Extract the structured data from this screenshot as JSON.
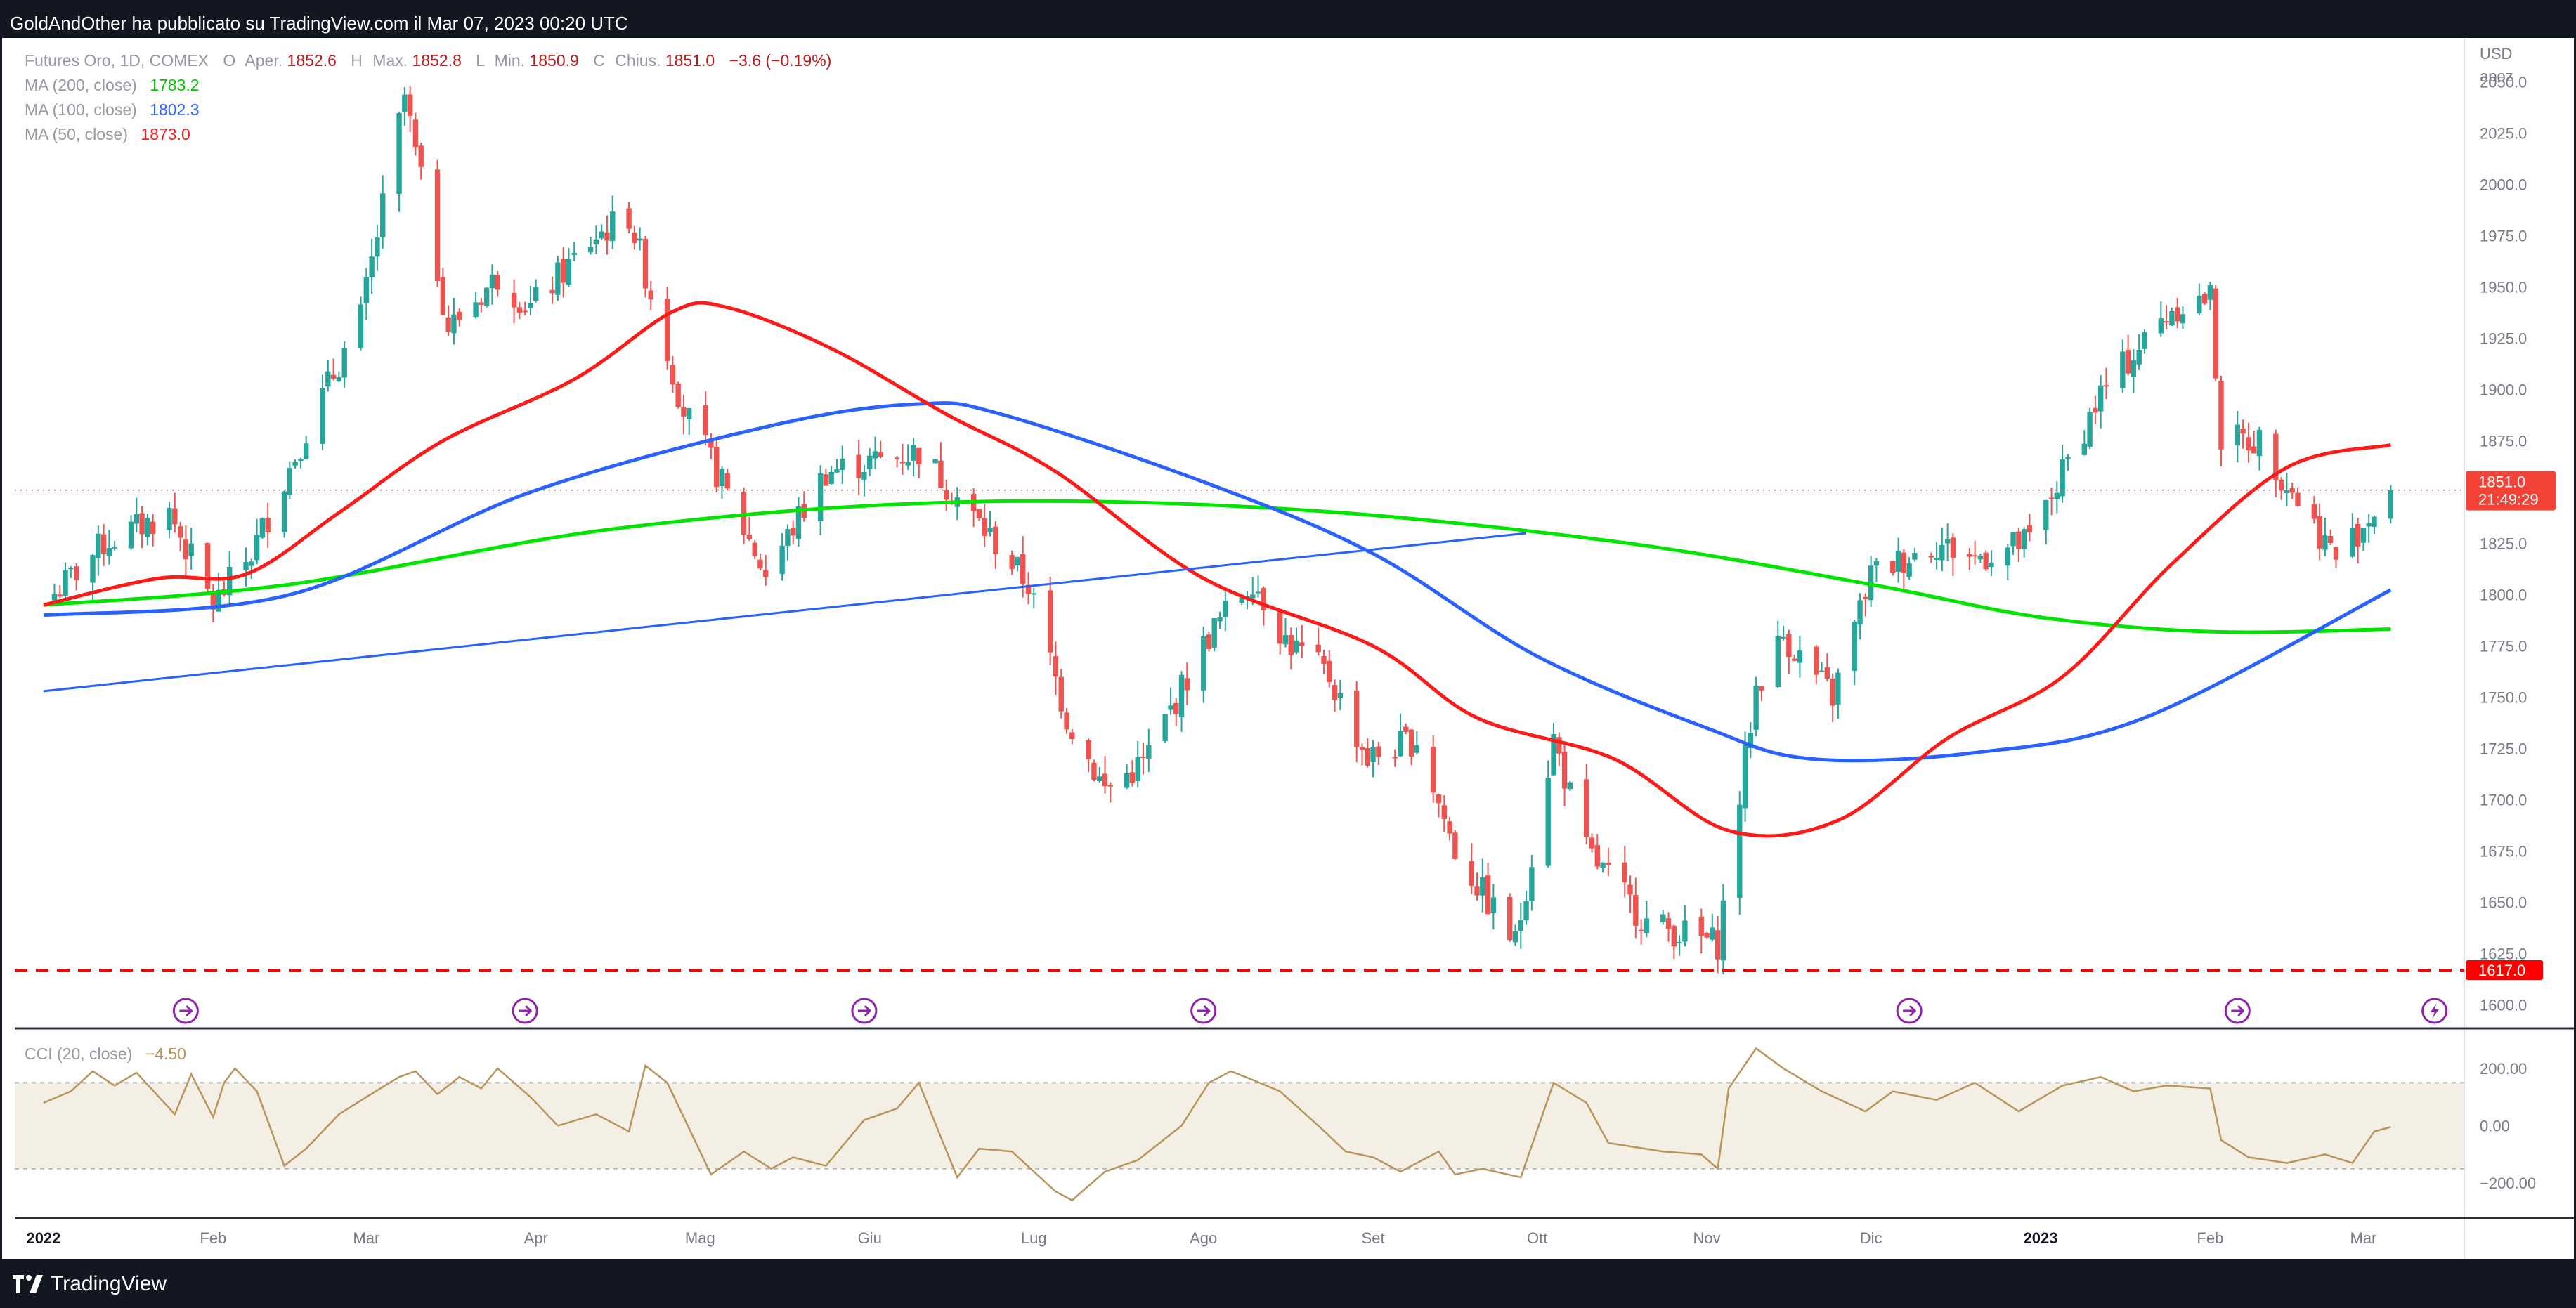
{
  "header": {
    "publisher_text": "GoldAndOther ha pubblicato su TradingView.com il Mar 07, 2023 00:20 UTC"
  },
  "footer": {
    "logo_text": "TradingView"
  },
  "legend": {
    "symbol": "Futures Oro, 1D, COMEX",
    "open_label": "O",
    "open_word": "Aper.",
    "open": "1852.6",
    "high_label": "H",
    "high_word": "Max.",
    "high": "1852.8",
    "low_label": "L",
    "low_word": "Min.",
    "low": "1850.9",
    "close_label": "C",
    "close_word": "Chius.",
    "close": "1851.0",
    "change": "−3.6 (−0.19%)",
    "ma200_label": "MA (200, close)",
    "ma200_value": "1783.2",
    "ma100_label": "MA (100, close)",
    "ma100_value": "1802.3",
    "ma50_label": "MA (50, close)",
    "ma50_value": "1873.0"
  },
  "price_axis": {
    "currency": "USD",
    "scale_mode": "apoz",
    "current_price_tag": "1851.0",
    "countdown_tag": "21:49:29",
    "level_tag": "1617.0"
  },
  "cci_legend": {
    "label": "CCI (20, close)",
    "value": "−4.50"
  },
  "colors": {
    "up": "#26a69a",
    "down": "#ef5350",
    "ma200": "#00e500",
    "ma100": "#2962ff",
    "ma50": "#ff1a1a",
    "trendline": "#2962ff",
    "level": "#ff0000",
    "cci": "#b8955a",
    "cci_band": "#f3efe4",
    "event_icon": "#8e24aa"
  },
  "chart_data": [
    {
      "type": "candlestick",
      "title": "Futures Oro, 1D, COMEX",
      "x_tick_labels": [
        "2022",
        "Feb",
        "Mar",
        "Apr",
        "Mag",
        "Giu",
        "Lug",
        "Ago",
        "Set",
        "Ott",
        "Nov",
        "Dic",
        "2023",
        "Feb",
        "Mar"
      ],
      "y_ticks": [
        1600,
        1625,
        1650,
        1675,
        1700,
        1725,
        1750,
        1775,
        1800,
        1825,
        1850,
        1875,
        1900,
        1925,
        1950,
        1975,
        2000,
        2025,
        2050
      ],
      "y_tick_labels": [
        "1600.0",
        "1625.0",
        "1650.0",
        "1675.0",
        "1700.0",
        "1725.0",
        "1750.0",
        "1775.0",
        "1800.0",
        "1825.0",
        "1850.0",
        "1875.0",
        "1900.0",
        "1925.0",
        "1950.0",
        "1975.0",
        "2000.0",
        "2025.0",
        "2050.0"
      ],
      "ylim": [
        1592,
        2068
      ],
      "close_anchors": [
        [
          "2022-01-01",
          1795
        ],
        [
          "2022-01-12",
          1825
        ],
        [
          "2022-01-24",
          1840
        ],
        [
          "2022-02-01",
          1795
        ],
        [
          "2022-02-08",
          1820
        ],
        [
          "2022-02-18",
          1880
        ],
        [
          "2022-02-28",
          1935
        ],
        [
          "2022-03-08",
          2043
        ],
        [
          "2022-03-16",
          1930
        ],
        [
          "2022-03-25",
          1955
        ],
        [
          "2022-03-31",
          1940
        ],
        [
          "2022-04-12",
          1975
        ],
        [
          "2022-04-18",
          1985
        ],
        [
          "2022-04-28",
          1890
        ],
        [
          "2022-05-03",
          1865
        ],
        [
          "2022-05-13",
          1810
        ],
        [
          "2022-05-24",
          1860
        ],
        [
          "2022-06-10",
          1870
        ],
        [
          "2022-06-24",
          1825
        ],
        [
          "2022-06-30",
          1805
        ],
        [
          "2022-07-07",
          1740
        ],
        [
          "2022-07-14",
          1705
        ],
        [
          "2022-07-21",
          1718
        ],
        [
          "2022-08-02",
          1780
        ],
        [
          "2022-08-10",
          1808
        ],
        [
          "2022-08-16",
          1778
        ],
        [
          "2022-08-24",
          1760
        ],
        [
          "2022-08-31",
          1720
        ],
        [
          "2022-09-09",
          1730
        ],
        [
          "2022-09-16",
          1675
        ],
        [
          "2022-09-27",
          1630
        ],
        [
          "2022-10-04",
          1730
        ],
        [
          "2022-10-10",
          1675
        ],
        [
          "2022-10-21",
          1640
        ],
        [
          "2022-11-03",
          1630
        ],
        [
          "2022-11-10",
          1755
        ],
        [
          "2022-11-15",
          1780
        ],
        [
          "2022-11-24",
          1750
        ],
        [
          "2022-12-01",
          1810
        ],
        [
          "2022-12-13",
          1825
        ],
        [
          "2022-12-20",
          1818
        ],
        [
          "2022-12-30",
          1826
        ],
        [
          "2023-01-12",
          1898
        ],
        [
          "2023-01-25",
          1940
        ],
        [
          "2023-02-01",
          1945
        ],
        [
          "2023-02-03",
          1876
        ],
        [
          "2023-02-10",
          1875
        ],
        [
          "2023-02-24",
          1818
        ],
        [
          "2023-03-06",
          1851
        ]
      ],
      "series": [
        {
          "name": "MA (200, close)",
          "points": [
            [
              "2022-01-01",
              1795
            ],
            [
              "2022-02-15",
              1805
            ],
            [
              "2022-04-15",
              1832
            ],
            [
              "2022-06-15",
              1845
            ],
            [
              "2022-08-15",
              1842
            ],
            [
              "2022-10-15",
              1826
            ],
            [
              "2022-12-01",
              1805
            ],
            [
              "2023-01-01",
              1789
            ],
            [
              "2023-02-01",
              1782
            ],
            [
              "2023-03-06",
              1783.2
            ]
          ]
        },
        {
          "name": "MA (100, close)",
          "points": [
            [
              "2022-01-01",
              1790
            ],
            [
              "2022-02-15",
              1800
            ],
            [
              "2022-03-31",
              1850
            ],
            [
              "2022-05-15",
              1883
            ],
            [
              "2022-06-10",
              1893
            ],
            [
              "2022-06-25",
              1888
            ],
            [
              "2022-08-01",
              1855
            ],
            [
              "2022-09-01",
              1820
            ],
            [
              "2022-10-01",
              1770
            ],
            [
              "2022-11-01",
              1735
            ],
            [
              "2022-11-20",
              1720
            ],
            [
              "2022-12-20",
              1723
            ],
            [
              "2023-01-20",
              1740
            ],
            [
              "2023-03-06",
              1802.3
            ]
          ]
        },
        {
          "name": "MA (50, close)",
          "points": [
            [
              "2022-01-01",
              1795
            ],
            [
              "2022-01-22",
              1808
            ],
            [
              "2022-02-07",
              1810
            ],
            [
              "2022-02-24",
              1840
            ],
            [
              "2022-03-15",
              1875
            ],
            [
              "2022-04-08",
              1905
            ],
            [
              "2022-04-26",
              1938
            ],
            [
              "2022-05-06",
              1940
            ],
            [
              "2022-05-25",
              1920
            ],
            [
              "2022-06-15",
              1888
            ],
            [
              "2022-07-05",
              1860
            ],
            [
              "2022-08-01",
              1808
            ],
            [
              "2022-09-01",
              1775
            ],
            [
              "2022-09-20",
              1740
            ],
            [
              "2022-10-15",
              1720
            ],
            [
              "2022-11-05",
              1685
            ],
            [
              "2022-11-25",
              1690
            ],
            [
              "2022-12-15",
              1730
            ],
            [
              "2023-01-05",
              1760
            ],
            [
              "2023-01-25",
              1815
            ],
            [
              "2023-02-15",
              1862
            ],
            [
              "2023-03-06",
              1873.0
            ]
          ]
        }
      ],
      "trendline": {
        "from": [
          "2022-01-01",
          1753
        ],
        "to": [
          "2022-09-29",
          1830
        ]
      },
      "horizontal_level": 1617.0,
      "event_dates": [
        "2022-01-27",
        "2022-03-30",
        "2022-05-31",
        "2022-08-01",
        "2022-12-08",
        "2023-02-06",
        "2023-03-14"
      ],
      "grid": false,
      "legend": "top-left"
    },
    {
      "type": "line",
      "title": "CCI (20, close)",
      "y_ticks": [
        200,
        0,
        -200
      ],
      "y_tick_labels": [
        "200.00",
        "0.00",
        "−200.00"
      ],
      "band": [
        -150,
        150
      ],
      "ylim": [
        -310,
        315
      ],
      "points": [
        [
          "2022-01-01",
          80
        ],
        [
          "2022-01-06",
          120
        ],
        [
          "2022-01-10",
          190
        ],
        [
          "2022-01-14",
          140
        ],
        [
          "2022-01-18",
          185
        ],
        [
          "2022-01-25",
          40
        ],
        [
          "2022-01-28",
          180
        ],
        [
          "2022-02-01",
          30
        ],
        [
          "2022-02-03",
          150
        ],
        [
          "2022-02-05",
          200
        ],
        [
          "2022-02-09",
          120
        ],
        [
          "2022-02-14",
          -140
        ],
        [
          "2022-02-18",
          -80
        ],
        [
          "2022-02-24",
          40
        ],
        [
          "2022-03-01",
          100
        ],
        [
          "2022-03-07",
          170
        ],
        [
          "2022-03-10",
          190
        ],
        [
          "2022-03-14",
          110
        ],
        [
          "2022-03-18",
          170
        ],
        [
          "2022-03-22",
          130
        ],
        [
          "2022-03-25",
          200
        ],
        [
          "2022-03-31",
          100
        ],
        [
          "2022-04-05",
          0
        ],
        [
          "2022-04-12",
          40
        ],
        [
          "2022-04-18",
          -20
        ],
        [
          "2022-04-21",
          210
        ],
        [
          "2022-04-25",
          150
        ],
        [
          "2022-04-30",
          -50
        ],
        [
          "2022-05-03",
          -170
        ],
        [
          "2022-05-09",
          -90
        ],
        [
          "2022-05-14",
          -150
        ],
        [
          "2022-05-18",
          -110
        ],
        [
          "2022-05-24",
          -140
        ],
        [
          "2022-05-31",
          20
        ],
        [
          "2022-06-06",
          60
        ],
        [
          "2022-06-10",
          150
        ],
        [
          "2022-06-14",
          -40
        ],
        [
          "2022-06-17",
          -180
        ],
        [
          "2022-06-21",
          -80
        ],
        [
          "2022-06-27",
          -90
        ],
        [
          "2022-07-05",
          -230
        ],
        [
          "2022-07-08",
          -260
        ],
        [
          "2022-07-14",
          -160
        ],
        [
          "2022-07-20",
          -120
        ],
        [
          "2022-07-28",
          0
        ],
        [
          "2022-08-02",
          150
        ],
        [
          "2022-08-06",
          190
        ],
        [
          "2022-08-10",
          160
        ],
        [
          "2022-08-15",
          120
        ],
        [
          "2022-08-22",
          0
        ],
        [
          "2022-08-27",
          -90
        ],
        [
          "2022-09-01",
          -110
        ],
        [
          "2022-09-06",
          -160
        ],
        [
          "2022-09-13",
          -90
        ],
        [
          "2022-09-16",
          -170
        ],
        [
          "2022-09-21",
          -150
        ],
        [
          "2022-09-28",
          -180
        ],
        [
          "2022-10-04",
          150
        ],
        [
          "2022-10-10",
          80
        ],
        [
          "2022-10-14",
          -60
        ],
        [
          "2022-10-24",
          -90
        ],
        [
          "2022-10-31",
          -100
        ],
        [
          "2022-11-03",
          -150
        ],
        [
          "2022-11-05",
          130
        ],
        [
          "2022-11-10",
          270
        ],
        [
          "2022-11-15",
          200
        ],
        [
          "2022-11-22",
          120
        ],
        [
          "2022-11-30",
          50
        ],
        [
          "2022-12-05",
          120
        ],
        [
          "2022-12-13",
          90
        ],
        [
          "2022-12-20",
          150
        ],
        [
          "2022-12-28",
          50
        ],
        [
          "2023-01-05",
          140
        ],
        [
          "2023-01-12",
          170
        ],
        [
          "2023-01-18",
          120
        ],
        [
          "2023-01-24",
          140
        ],
        [
          "2023-02-01",
          130
        ],
        [
          "2023-02-03",
          -50
        ],
        [
          "2023-02-08",
          -110
        ],
        [
          "2023-02-15",
          -130
        ],
        [
          "2023-02-22",
          -100
        ],
        [
          "2023-02-27",
          -130
        ],
        [
          "2023-03-03",
          -20
        ],
        [
          "2023-03-06",
          -4.5
        ]
      ],
      "grid": false,
      "legend": "top-left"
    }
  ]
}
